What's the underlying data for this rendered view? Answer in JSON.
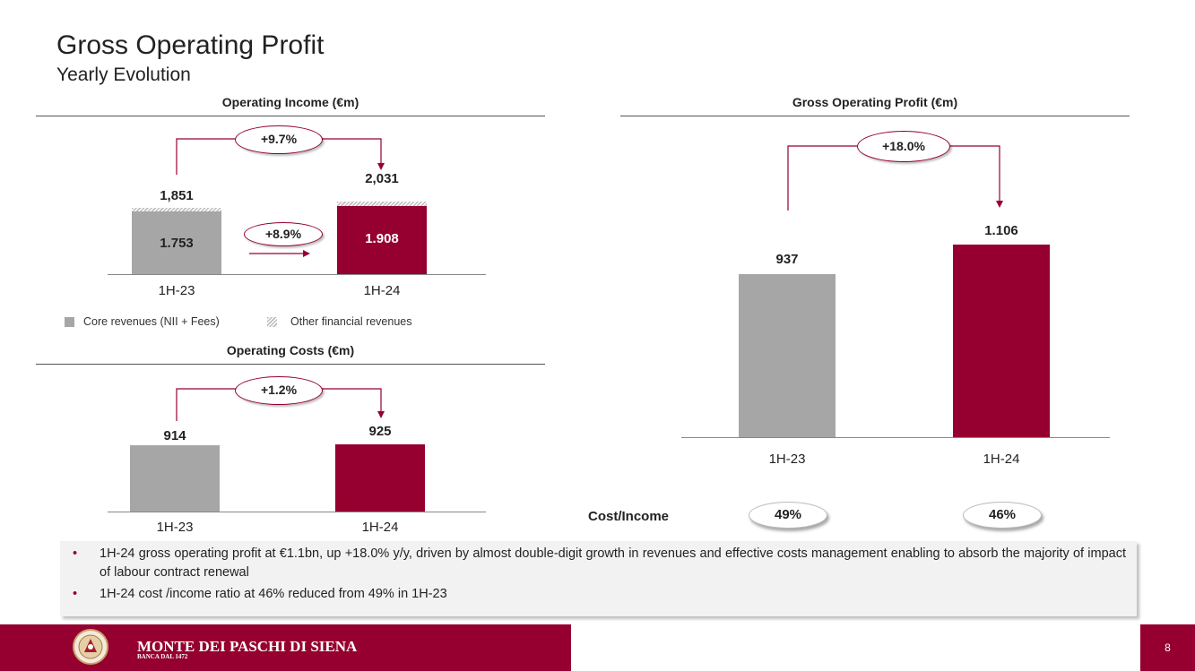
{
  "header": {
    "title": "Gross Operating Profit",
    "subtitle": "Yearly Evolution"
  },
  "colors": {
    "accent": "#960030",
    "grey_bar": "#a6a6a6"
  },
  "chart_data": [
    {
      "type": "bar",
      "title": "Operating Income (€m)",
      "categories": [
        "1H-23",
        "1H-24"
      ],
      "series": [
        {
          "name": "Core revenues (NII + Fees)",
          "values": [
            1753,
            1908
          ],
          "labels": [
            "1.753",
            "1.908"
          ]
        },
        {
          "name": "Other financial revenues",
          "values": [
            98,
            123
          ]
        }
      ],
      "totals": [
        1851,
        2031
      ],
      "total_labels": [
        "1,851",
        "2,031"
      ],
      "annotations": {
        "total_change": "+9.7%",
        "core_change": "+8.9%"
      },
      "ylim": [
        0,
        2100
      ]
    },
    {
      "type": "bar",
      "title": "Operating Costs (€m)",
      "categories": [
        "1H-23",
        "1H-24"
      ],
      "values": [
        914,
        925
      ],
      "labels": [
        "914",
        "925"
      ],
      "annotations": {
        "change": "+1.2%"
      },
      "ylim": [
        0,
        1000
      ]
    },
    {
      "type": "bar",
      "title": "Gross Operating Profit (€m)",
      "categories": [
        "1H-23",
        "1H-24"
      ],
      "values": [
        937,
        1106
      ],
      "labels": [
        "937",
        "1.106"
      ],
      "annotations": {
        "change": "+18.0%"
      },
      "ylim": [
        0,
        1200
      ]
    }
  ],
  "cost_income": {
    "label": "Cost/Income",
    "values": [
      "49%",
      "46%"
    ]
  },
  "notes": [
    "1H-24 gross operating profit at €1.1bn, up +18.0% y/y, driven by almost double-digit growth in revenues and effective costs management enabling to absorb the majority of impact of labour contract renewal",
    "1H-24 cost /income ratio at 46% reduced from 49% in 1H-23"
  ],
  "footer": {
    "brand": "MONTE DEI PASCHI DI SIENA",
    "brand_sub": "BANCA DAL 1472",
    "page_number": "8",
    "logo_icon": "bank-seal-icon"
  }
}
